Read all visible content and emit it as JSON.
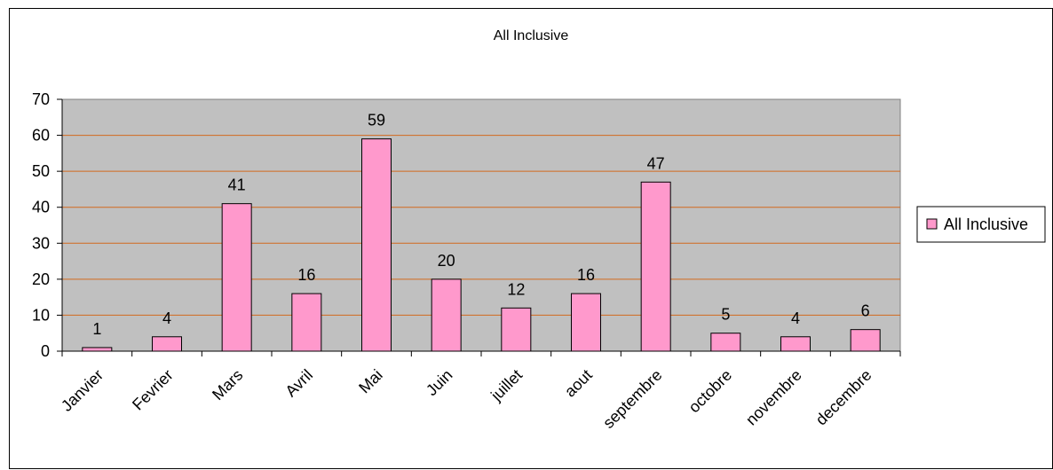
{
  "chart_data": {
    "type": "bar",
    "title": "All Inclusive",
    "categories": [
      "Janvier",
      "Fevrier",
      "Mars",
      "Avril",
      "Mai",
      "Juin",
      "juillet",
      "aout",
      "septembre",
      "octobre",
      "novembre",
      "decembre"
    ],
    "series": [
      {
        "name": "All Inclusive",
        "values": [
          1,
          4,
          41,
          16,
          59,
          20,
          12,
          16,
          47,
          5,
          4,
          6
        ]
      }
    ],
    "ylim": [
      0,
      70
    ],
    "yticks": [
      0,
      10,
      20,
      30,
      40,
      50,
      60,
      70
    ],
    "xlabel": "",
    "ylabel": "",
    "grid": true,
    "legend": "right",
    "colors": {
      "bar_fill": "#FF99CC",
      "bar_stroke": "#000000",
      "plot_bg": "#C0C0C0",
      "grid": "#D2691E"
    }
  }
}
